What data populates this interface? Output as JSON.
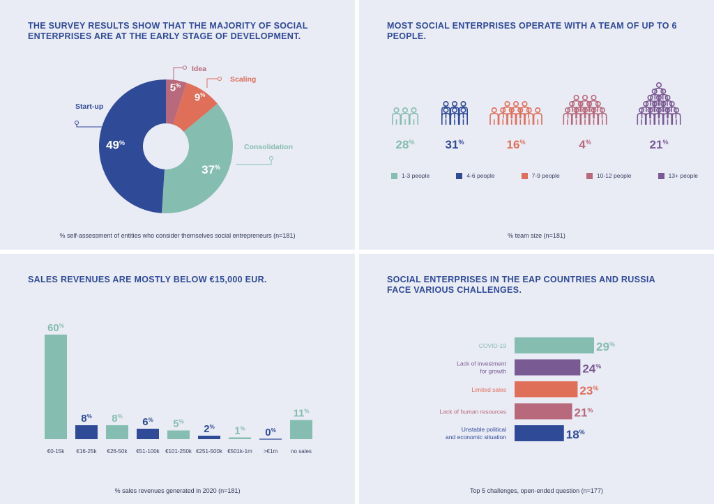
{
  "colors": {
    "teal": "#86bdb1",
    "navy": "#2f4a97",
    "coral": "#e06f5a",
    "rose": "#b86a7c",
    "purple": "#7a5a92",
    "panel_bg": "#e9ebf5",
    "title": "#2f4a97"
  },
  "panels": {
    "stage": {
      "title": "THE SURVEY RESULTS SHOW THAT THE MAJORITY OF SOCIAL ENTERPRISES ARE AT THE EARLY STAGE OF DEVELOPMENT.",
      "footnote": "% self-assessment of entities who consider themselves social entrepreneurs (n=181)"
    },
    "team": {
      "title": "MOST SOCIAL ENTERPRISES OPERATE WITH A TEAM OF UP TO 6 PEOPLE.",
      "footnote": "% team size (n=181)"
    },
    "revenue": {
      "title": "SALES REVENUES ARE MOSTLY BELOW €15,000 EUR.",
      "footnote": "% sales revenues generated in 2020 (n=181)"
    },
    "challenges": {
      "title": "SOCIAL ENTERPRISES IN THE EAP COUNTRIES AND RUSSIA FACE VARIOUS CHALLENGES.",
      "footnote": "Top 5 challenges, open-ended question (n=177)"
    }
  },
  "chart_data": [
    {
      "type": "pie",
      "donut": true,
      "unit": "%",
      "slices": [
        {
          "label": "Idea",
          "value": 5,
          "color": "#b86a7c"
        },
        {
          "label": "Scaling",
          "value": 9,
          "color": "#e06f5a"
        },
        {
          "label": "Consolidation",
          "value": 37,
          "color": "#86bdb1"
        },
        {
          "label": "Start-up",
          "value": 49,
          "color": "#2f4a97"
        }
      ]
    },
    {
      "type": "pictogram",
      "unit": "%",
      "categories": [
        {
          "label": "1-3 people",
          "value": 28,
          "color": "#86bdb1",
          "figures": 3
        },
        {
          "label": "4-6 people",
          "value": 31,
          "color": "#2f4a97",
          "figures": 6
        },
        {
          "label": "7-9 people",
          "value": 16,
          "color": "#e06f5a",
          "figures": 9
        },
        {
          "label": "10-12 people",
          "value": 4,
          "color": "#b86a7c",
          "figures": 12
        },
        {
          "label": "13+ people",
          "value": 21,
          "color": "#7a5a92",
          "figures": 15
        }
      ]
    },
    {
      "type": "bar",
      "unit": "%",
      "categories": [
        "€0-15k",
        "€16-25k",
        "€26-50k",
        "€51-100k",
        "€101-250k",
        "€251-500k",
        "€501k-1m",
        ">€1m",
        "no sales"
      ],
      "values": [
        60,
        8,
        8,
        6,
        5,
        2,
        1,
        0,
        11
      ],
      "colors": [
        "#86bdb1",
        "#2f4a97",
        "#86bdb1",
        "#2f4a97",
        "#86bdb1",
        "#2f4a97",
        "#86bdb1",
        "#2f4a97",
        "#86bdb1"
      ],
      "ylim": [
        0,
        60
      ]
    },
    {
      "type": "bar",
      "orientation": "horizontal",
      "unit": "%",
      "categories": [
        [
          "COVID-19"
        ],
        [
          "Lack of investment",
          "for growth"
        ],
        [
          "Limited sales"
        ],
        [
          "Lack of human resources"
        ],
        [
          "Unstable political",
          "and economic situation"
        ]
      ],
      "values": [
        29,
        24,
        23,
        21,
        18
      ],
      "colors": [
        "#86bdb1",
        "#7a5a92",
        "#e06f5a",
        "#b86a7c",
        "#2f4a97"
      ],
      "xlim": [
        0,
        29
      ]
    }
  ]
}
